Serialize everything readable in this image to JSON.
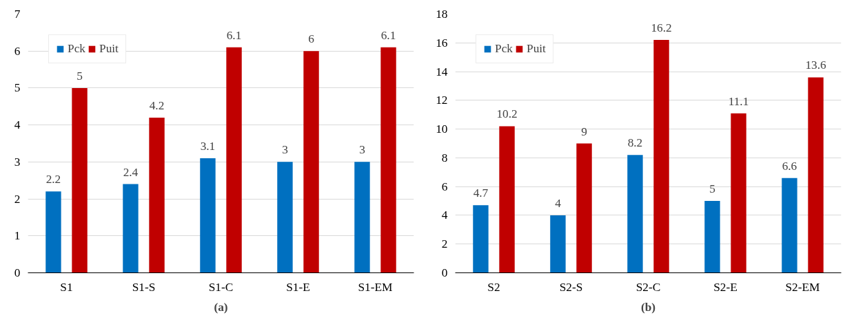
{
  "chart_data": [
    {
      "type": "bar",
      "categories": [
        "S1",
        "S1-S",
        "S1-C",
        "S1-E",
        "S1-EM"
      ],
      "series": [
        {
          "name": "Pck",
          "color": "#0070c0",
          "values": [
            2.2,
            2.4,
            3.1,
            3,
            3
          ]
        },
        {
          "name": "Puit",
          "color": "#c00000",
          "values": [
            5,
            4.2,
            6.1,
            6,
            6.1
          ]
        }
      ],
      "ylim": [
        0,
        7
      ],
      "yticks": [
        0,
        1,
        2,
        3,
        4,
        5,
        6,
        7
      ],
      "grid": "y",
      "legend": "top left",
      "data_labels": true,
      "annotations": [
        "(a)"
      ]
    },
    {
      "type": "bar",
      "categories": [
        "S2",
        "S2-S",
        "S2-C",
        "S2-E",
        "S2-EM"
      ],
      "series": [
        {
          "name": "Pck",
          "color": "#0070c0",
          "values": [
            4.7,
            4,
            8.2,
            5,
            6.6
          ]
        },
        {
          "name": "Puit",
          "color": "#c00000",
          "values": [
            10.2,
            9,
            16.2,
            11.1,
            13.6
          ]
        }
      ],
      "ylim": [
        0,
        18
      ],
      "yticks": [
        0,
        2,
        4,
        6,
        8,
        10,
        12,
        14,
        16,
        18
      ],
      "grid": "y",
      "legend": "top left",
      "data_labels": true,
      "annotations": [
        "(b)"
      ]
    }
  ]
}
